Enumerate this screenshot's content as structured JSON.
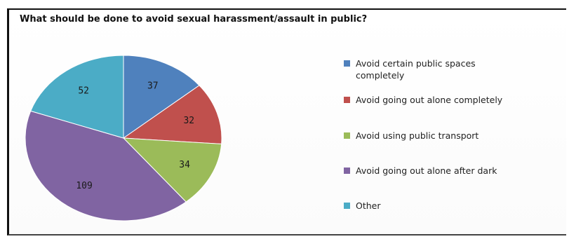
{
  "chart_data": {
    "type": "pie",
    "title": "What should be done to avoid sexual harassment/assault in public?",
    "series": [
      {
        "name": "",
        "values": [
          37,
          32,
          34,
          109,
          52
        ]
      }
    ],
    "categories": [
      "Avoid certain public spaces completely",
      "Avoid going out alone completely",
      "Avoid using public transport",
      "Avoid going out alone after dark",
      "Other"
    ],
    "colors": [
      "#4f81bd",
      "#c0504d",
      "#9bbb59",
      "#8064a2",
      "#4bacc6"
    ],
    "legend_position": "right",
    "start_angle_deg": 0,
    "direction": "clockwise"
  }
}
